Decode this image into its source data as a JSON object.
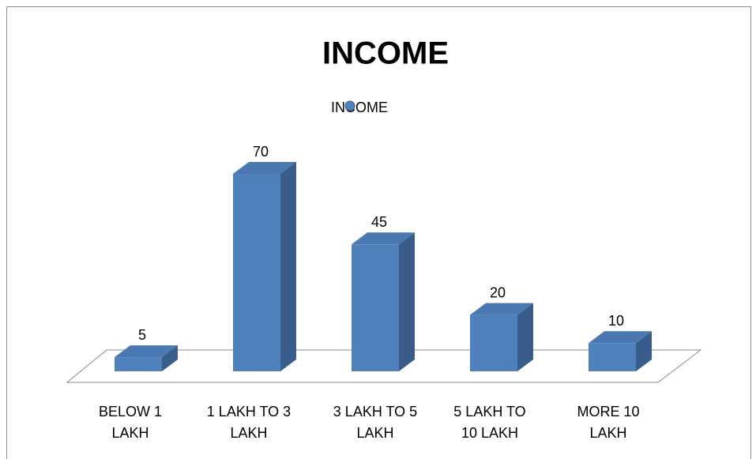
{
  "chart_data": {
    "type": "bar3d",
    "title": "INCOME",
    "categories": [
      "BELOW 1 LAKH",
      "1 LAKH TO 3 LAKH",
      "3 LAKH TO 5 LAKH",
      "5 LAKH TO 10 LAKH",
      "MORE 10 LAKH"
    ],
    "series": [
      {
        "name": "INCOME",
        "color": "#4f81bd",
        "values": [
          5,
          70,
          45,
          20,
          10
        ]
      }
    ]
  }
}
